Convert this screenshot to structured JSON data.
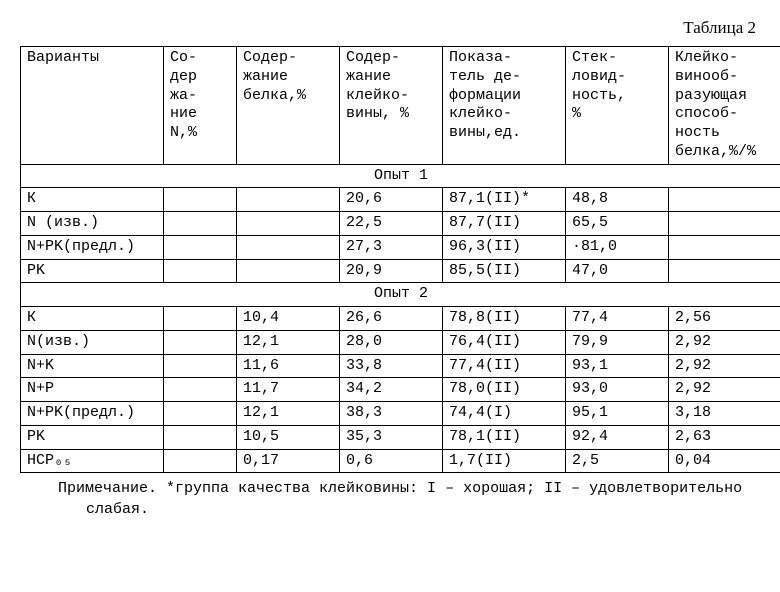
{
  "caption": "Таблица 2",
  "headers": {
    "c1": "Варианты",
    "c2": "Со-\nдер\nжа-\nние\nN,%",
    "c3": "Содер-\nжание\nбелка,%",
    "c4": "Содер-\nжание\nклейко-\nвины, %",
    "c5": "Показа-\nтель де-\nформации\nклейко-\nвины,ед.",
    "c6": "Стек-\nловид-\nность,\n%",
    "c7": "Клейко-\nвинооб-\nразующая\nспособ-\nность\nбелка,%/%"
  },
  "section1": "Опыт 1",
  "exp1": [
    {
      "v": "К",
      "n": "",
      "p": "",
      "kl": "20,6",
      "def": "87,1(II)*",
      "st": "48,8",
      "ab": ""
    },
    {
      "v": "N (изв.)",
      "n": "",
      "p": "",
      "kl": "22,5",
      "def": "87,7(II)",
      "st": "65,5",
      "ab": ""
    },
    {
      "v": "N+PK(предл.)",
      "n": "",
      "p": "",
      "kl": "27,3",
      "def": "96,3(II)",
      "st": "·81,0",
      "ab": ""
    },
    {
      "v": "PK",
      "n": "",
      "p": "",
      "kl": "20,9",
      "def": "85,5(II)",
      "st": "47,0",
      "ab": ""
    }
  ],
  "section2": "Опыт 2",
  "exp2": [
    {
      "v": "К",
      "n": "",
      "p": "10,4",
      "kl": "26,6",
      "def": "78,8(II)",
      "st": "77,4",
      "ab": "2,56"
    },
    {
      "v": "N(изв.)",
      "n": "",
      "p": "12,1",
      "kl": "28,0",
      "def": "76,4(II)",
      "st": "79,9",
      "ab": "2,92"
    },
    {
      "v": "N+K",
      "n": "",
      "p": "11,6",
      "kl": "33,8",
      "def": "77,4(II)",
      "st": "93,1",
      "ab": "2,92"
    },
    {
      "v": "N+P",
      "n": "",
      "p": "11,7",
      "kl": "34,2",
      "def": "78,0(II)",
      "st": "93,0",
      "ab": "2,92"
    },
    {
      "v": "N+PK(предл.)",
      "n": "",
      "p": "12,1",
      "kl": "38,3",
      "def": "74,4(I)",
      "st": "95,1",
      "ab": "3,18"
    },
    {
      "v": "PK",
      "n": "",
      "p": "10,5",
      "kl": "35,3",
      "def": "78,1(II)",
      "st": "92,4",
      "ab": "2,63"
    },
    {
      "v": "НСР₀₅",
      "n": "",
      "p": "0,17",
      "kl": "0,6",
      "def": "1,7(II)",
      "st": "2,5",
      "ab": "0,04"
    }
  ],
  "note": "Примечание. *группа качества клейковины: I – хорошая;  II – удовлетворительно слабая."
}
